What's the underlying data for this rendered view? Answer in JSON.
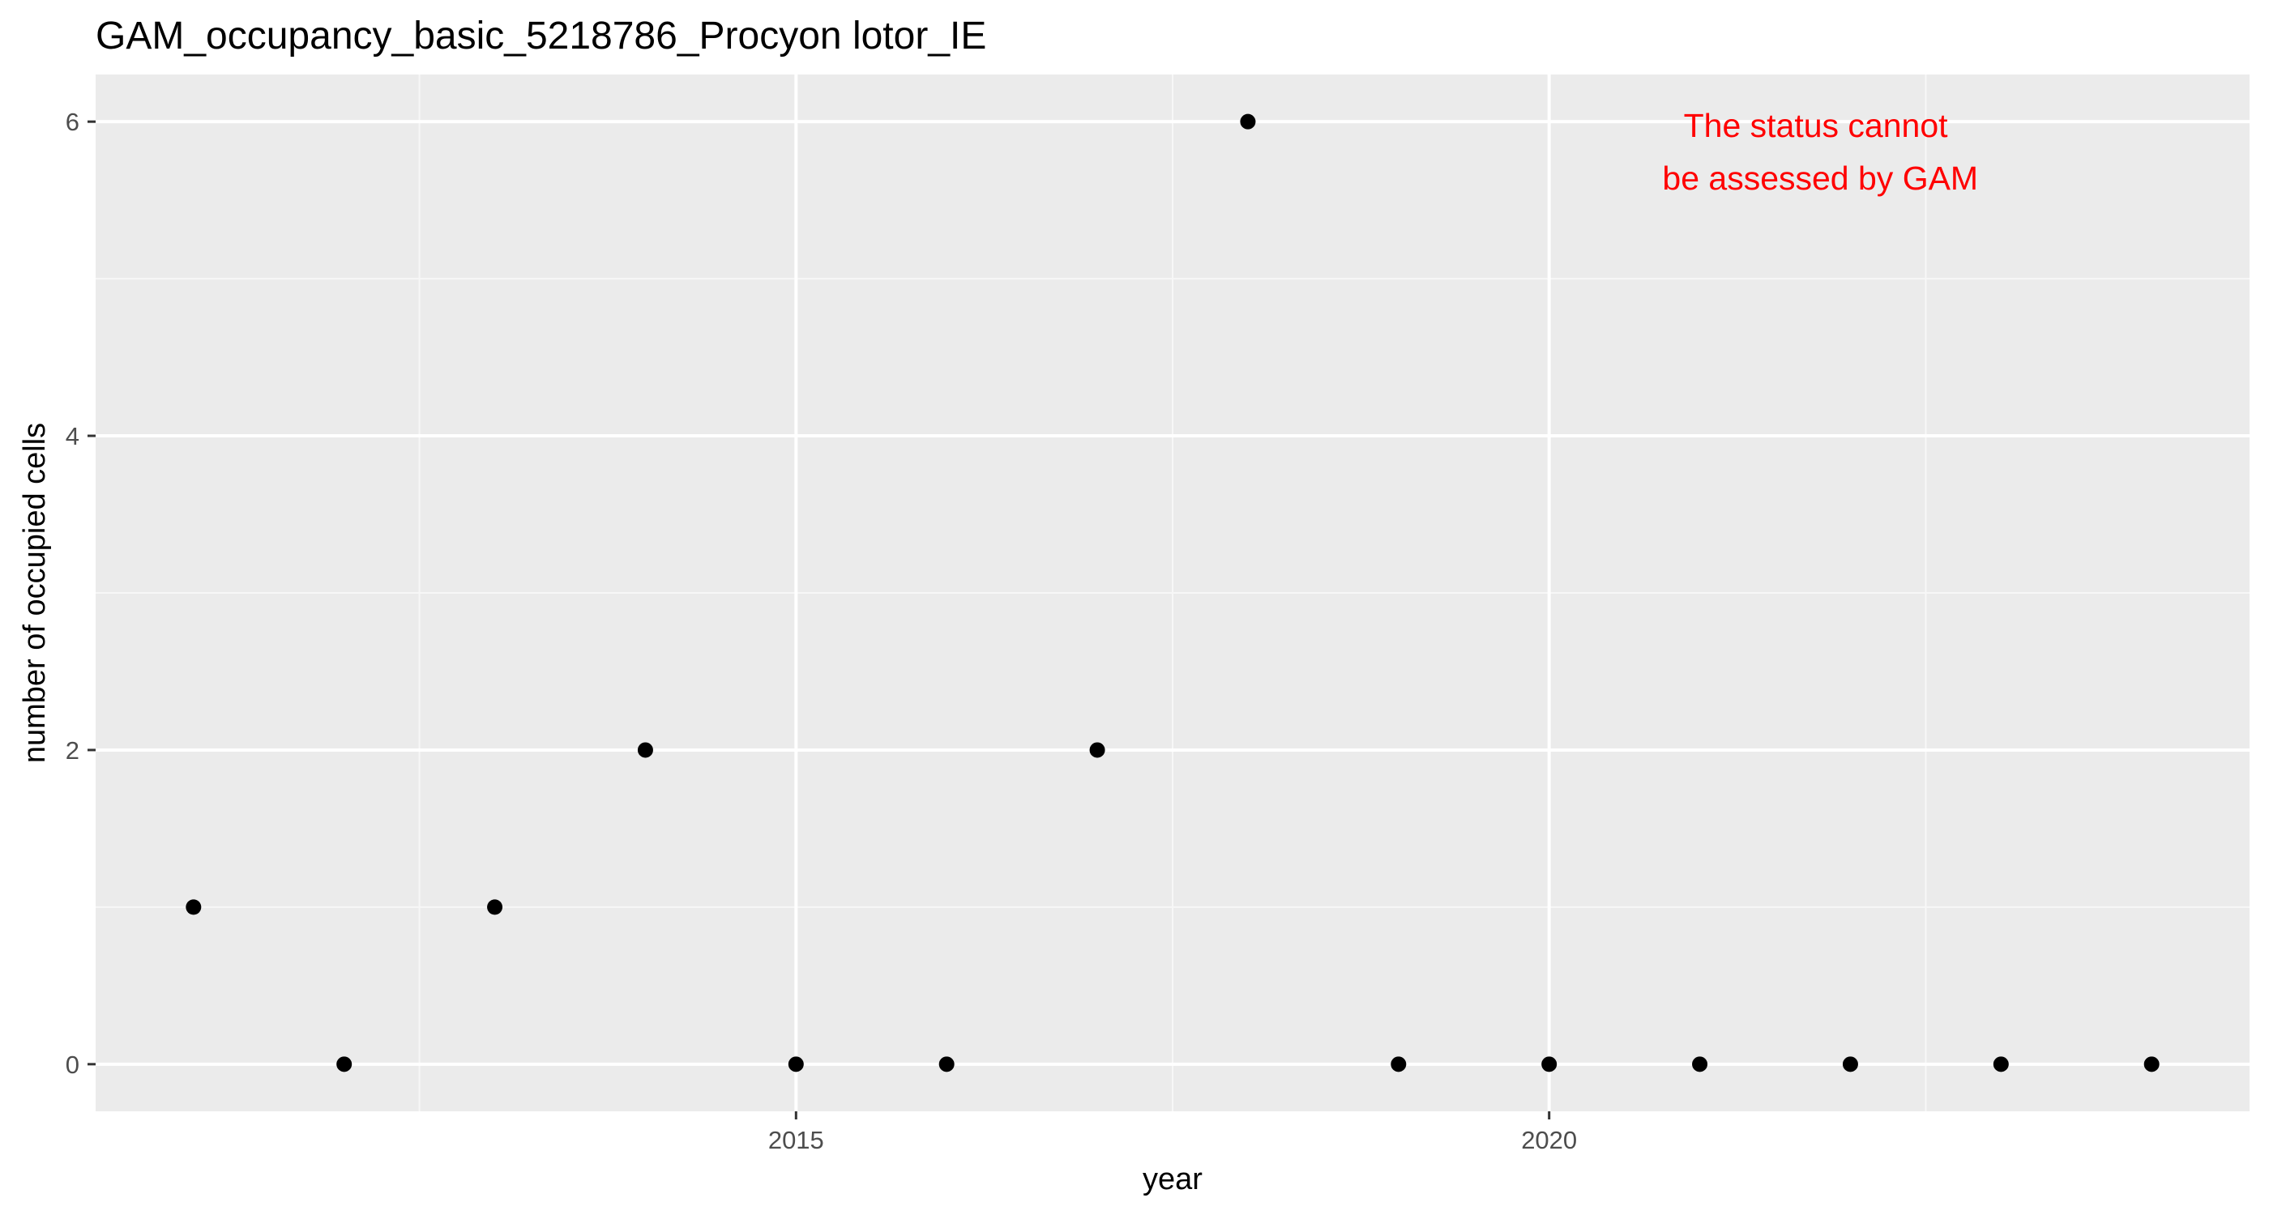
{
  "chart_data": {
    "type": "scatter",
    "title": "GAM_occupancy_basic_5218786_Procyon lotor_IE",
    "xlabel": "year",
    "ylabel": "number of occupied cells",
    "x": [
      2011,
      2012,
      2013,
      2014,
      2015,
      2016,
      2017,
      2018,
      2019,
      2020,
      2021,
      2022,
      2023,
      2024
    ],
    "y": [
      1,
      0,
      1,
      2,
      0,
      0,
      2,
      6,
      0,
      0,
      0,
      0,
      0,
      0
    ],
    "xlim": [
      2010.35,
      2024.65
    ],
    "ylim": [
      -0.3,
      6.3
    ],
    "x_ticks": [
      2015,
      2020
    ],
    "x_minor_ticks": [
      2012.5,
      2017.5,
      2022.5
    ],
    "y_ticks": [
      0,
      2,
      4,
      6
    ],
    "y_minor_ticks": [
      1,
      3,
      5
    ],
    "grid": true,
    "legend": "none",
    "annotation": {
      "lines": [
        "The status cannot",
        "be assessed by GAM"
      ],
      "x": 2021.8,
      "y": 5.8,
      "color": "#FF0000"
    },
    "colors": {
      "panel_background": "#EBEBEB",
      "grid_major": "#FFFFFF",
      "grid_minor": "#F7F7F7",
      "point": "#000000",
      "tick_label": "#4D4D4D",
      "tick_mark": "#333333"
    }
  }
}
